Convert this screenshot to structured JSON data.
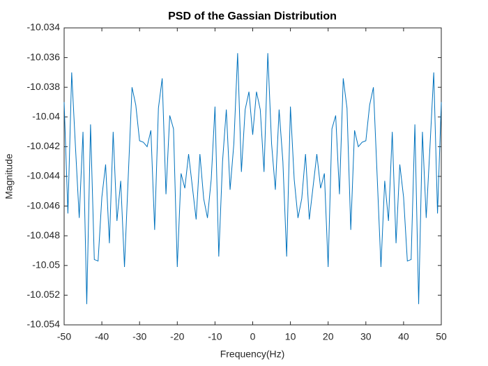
{
  "chart_data": {
    "type": "line",
    "title": "PSD of the Gassian Distribution",
    "x_label": "Frequency(Hz)",
    "y_label": "Magnitude",
    "x": [
      -50,
      -49,
      -48,
      -47,
      -46,
      -45,
      -44,
      -43,
      -42,
      -41,
      -40,
      -39,
      -38,
      -37,
      -36,
      -35,
      -34,
      -33,
      -32,
      -31,
      -30,
      -29,
      -28,
      -27,
      -26,
      -25,
      -24,
      -23,
      -22,
      -21,
      -20,
      -19,
      -18,
      -17,
      -16,
      -15,
      -14,
      -13,
      -12,
      -11,
      -10,
      -9,
      -8,
      -7,
      -6,
      -5,
      -4,
      -3,
      -2,
      -1,
      0,
      1,
      2,
      3,
      4,
      5,
      6,
      7,
      8,
      9,
      10,
      11,
      12,
      13,
      14,
      15,
      16,
      17,
      18,
      19,
      20,
      21,
      22,
      23,
      24,
      25,
      26,
      27,
      28,
      29,
      30,
      31,
      32,
      33,
      34,
      35,
      36,
      37,
      38,
      39,
      40,
      41,
      42,
      43,
      44,
      45,
      46,
      47,
      48,
      49,
      50
    ],
    "series": [
      {
        "color": "#0072bd",
        "values": [
          -10.039,
          -10.0465,
          -10.037,
          -10.042,
          -10.0468,
          -10.041,
          -10.0526,
          -10.0405,
          -10.0496,
          -10.0497,
          -10.0454,
          -10.0432,
          -10.0485,
          -10.041,
          -10.047,
          -10.0443,
          -10.0501,
          -10.044,
          -10.038,
          -10.0392,
          -10.0416,
          -10.0417,
          -10.042,
          -10.0409,
          -10.0476,
          -10.0394,
          -10.0374,
          -10.0452,
          -10.0399,
          -10.0408,
          -10.0501,
          -10.0438,
          -10.0448,
          -10.0425,
          -10.0447,
          -10.0469,
          -10.0425,
          -10.0455,
          -10.0468,
          -10.0442,
          -10.0393,
          -10.0494,
          -10.043,
          -10.0395,
          -10.0449,
          -10.0418,
          -10.0357,
          -10.0437,
          -10.0395,
          -10.0383,
          -10.0412,
          -10.0383,
          -10.0395,
          -10.0437,
          -10.0357,
          -10.0418,
          -10.0449,
          -10.0395,
          -10.043,
          -10.0494,
          -10.0393,
          -10.0442,
          -10.0468,
          -10.0455,
          -10.0425,
          -10.0469,
          -10.0447,
          -10.0425,
          -10.0448,
          -10.0438,
          -10.0501,
          -10.0408,
          -10.0399,
          -10.0452,
          -10.0374,
          -10.0394,
          -10.0476,
          -10.0409,
          -10.042,
          -10.0417,
          -10.0416,
          -10.0392,
          -10.038,
          -10.044,
          -10.0501,
          -10.0443,
          -10.047,
          -10.041,
          -10.0485,
          -10.0432,
          -10.0454,
          -10.0497,
          -10.0496,
          -10.0405,
          -10.0526,
          -10.041,
          -10.0468,
          -10.042,
          -10.037,
          -10.0465,
          -10.039
        ]
      }
    ],
    "xlim": [
      -50,
      50
    ],
    "xticks": [
      -50,
      -40,
      -30,
      -20,
      -10,
      0,
      10,
      20,
      30,
      40,
      50
    ],
    "ylim": [
      -10.054,
      -10.034
    ],
    "yticks": [
      -10.054,
      -10.052,
      -10.05,
      -10.048,
      -10.046,
      -10.044,
      -10.042,
      -10.04,
      -10.038,
      -10.036,
      -10.034
    ],
    "grid": false
  }
}
